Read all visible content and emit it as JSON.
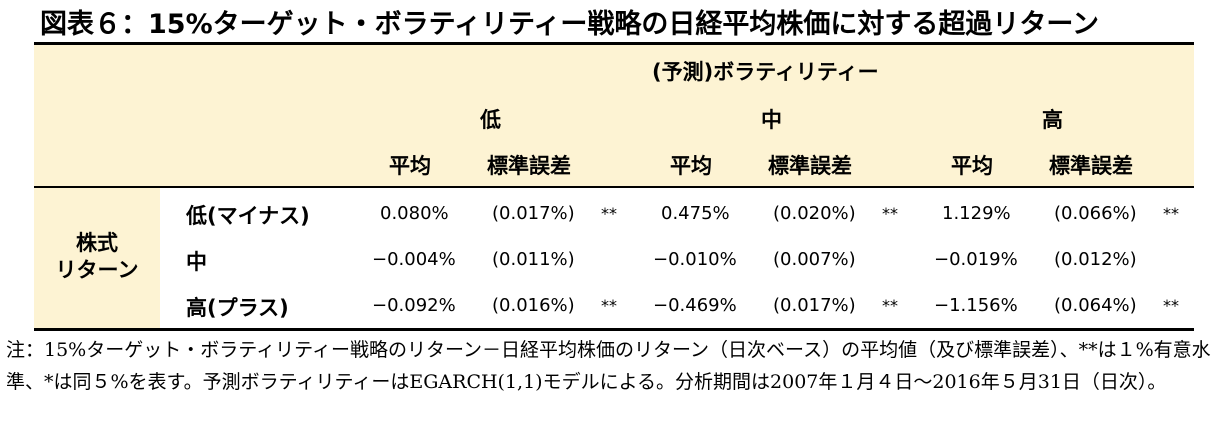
{
  "title": "図表６：15%ターゲット・ボラティリティー戦略の日経平均株価に対する超過リターン",
  "table": {
    "header_group": "(予測)ボラティリティー",
    "vol_levels": [
      "低",
      "中",
      "高"
    ],
    "stat_labels": {
      "mean": "平均",
      "se": "標準誤差"
    },
    "row_group": {
      "line1": "株式",
      "line2": "リターン"
    },
    "rows": [
      {
        "label": "低(マイナス)",
        "cells": [
          {
            "mean": "0.080%",
            "se": "(0.017%)",
            "sig": "**"
          },
          {
            "mean": "0.475%",
            "se": "(0.020%)",
            "sig": "**"
          },
          {
            "mean": "1.129%",
            "se": "(0.066%)",
            "sig": "**"
          }
        ]
      },
      {
        "label": "中",
        "cells": [
          {
            "mean": "−0.004%",
            "se": "(0.011%)",
            "sig": ""
          },
          {
            "mean": "−0.010%",
            "se": "(0.007%)",
            "sig": ""
          },
          {
            "mean": "−0.019%",
            "se": "(0.012%)",
            "sig": ""
          }
        ]
      },
      {
        "label": "高(プラス)",
        "cells": [
          {
            "mean": "−0.092%",
            "se": "(0.016%)",
            "sig": "**"
          },
          {
            "mean": "−0.469%",
            "se": "(0.017%)",
            "sig": "**"
          },
          {
            "mean": "−1.156%",
            "se": "(0.064%)",
            "sig": "**"
          }
        ]
      }
    ]
  },
  "note": "注：15%ターゲット・ボラティリティー戦略のリターン－日経平均株価のリターン（日次ベース）の平均値（及び標準誤差）、**は１%有意水準、*は同５%を表す。予測ボラティリティーはEGARCH(1,1)モデルによる。分析期間は2007年１月４日～2016年５月31日（日次）。"
}
